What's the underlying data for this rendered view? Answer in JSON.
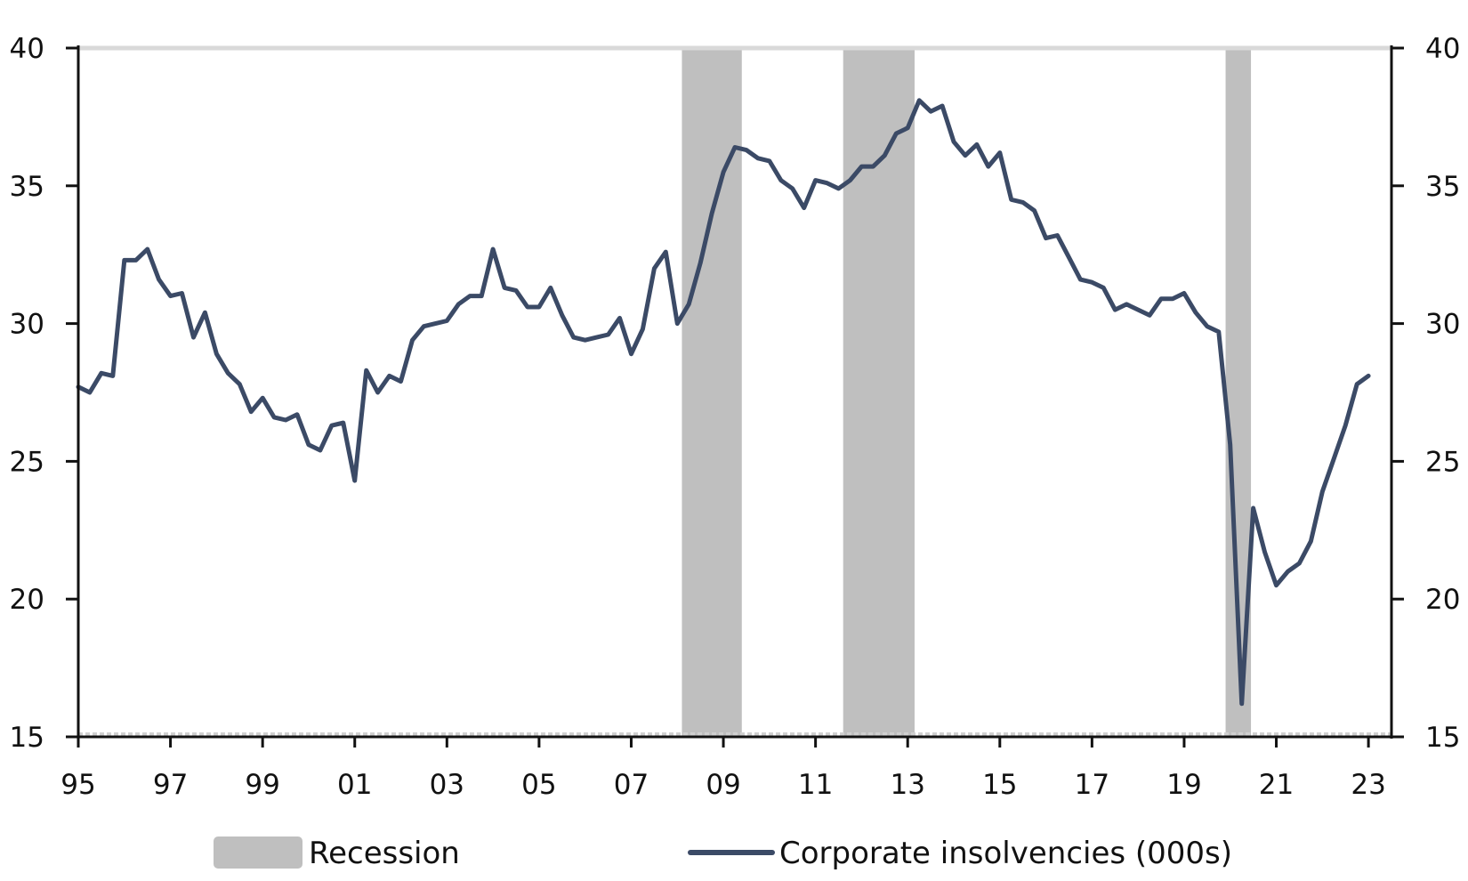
{
  "chart_data": {
    "type": "line",
    "title": "",
    "xlabel": "",
    "ylabel": "",
    "xlim": [
      1995,
      2023.5
    ],
    "ylim": [
      15,
      40
    ],
    "y_ticks": [
      15,
      20,
      25,
      30,
      35,
      40
    ],
    "y_tick_labels": [
      "15",
      "20",
      "25",
      "30",
      "35",
      "40"
    ],
    "x_ticks": [
      1995,
      1997,
      1999,
      2001,
      2003,
      2005,
      2007,
      2009,
      2011,
      2013,
      2015,
      2017,
      2019,
      2021,
      2023
    ],
    "x_tick_labels": [
      "95",
      "97",
      "99",
      "01",
      "03",
      "05",
      "07",
      "09",
      "11",
      "13",
      "15",
      "17",
      "19",
      "21",
      "23"
    ],
    "dual_y_axis": true,
    "legend_position": "bottom",
    "colors": {
      "line": "#3b4a66",
      "recession": "#bfbfbf",
      "top_grid": "#d9d9d9"
    },
    "recessions": [
      {
        "start": 2008.1,
        "end": 2009.4
      },
      {
        "start": 2011.6,
        "end": 2013.15
      },
      {
        "start": 2019.9,
        "end": 2020.45
      }
    ],
    "series": [
      {
        "name": "Corporate insolvencies (000s)",
        "x": [
          1995.0,
          1995.25,
          1995.5,
          1995.75,
          1996.0,
          1996.25,
          1996.5,
          1996.75,
          1997.0,
          1997.25,
          1997.5,
          1997.75,
          1998.0,
          1998.25,
          1998.5,
          1998.75,
          1999.0,
          1999.25,
          1999.5,
          1999.75,
          2000.0,
          2000.25,
          2000.5,
          2000.75,
          2001.0,
          2001.25,
          2001.5,
          2001.75,
          2002.0,
          2002.25,
          2002.5,
          2002.75,
          2003.0,
          2003.25,
          2003.5,
          2003.75,
          2004.0,
          2004.25,
          2004.5,
          2004.75,
          2005.0,
          2005.25,
          2005.5,
          2005.75,
          2006.0,
          2006.25,
          2006.5,
          2006.75,
          2007.0,
          2007.25,
          2007.5,
          2007.75,
          2008.0,
          2008.25,
          2008.5,
          2008.75,
          2009.0,
          2009.25,
          2009.5,
          2009.75,
          2010.0,
          2010.25,
          2010.5,
          2010.75,
          2011.0,
          2011.25,
          2011.5,
          2011.75,
          2012.0,
          2012.25,
          2012.5,
          2012.75,
          2013.0,
          2013.25,
          2013.5,
          2013.75,
          2014.0,
          2014.25,
          2014.5,
          2014.75,
          2015.0,
          2015.25,
          2015.5,
          2015.75,
          2016.0,
          2016.25,
          2016.5,
          2016.75,
          2017.0,
          2017.25,
          2017.5,
          2017.75,
          2018.0,
          2018.25,
          2018.5,
          2018.75,
          2019.0,
          2019.25,
          2019.5,
          2019.75,
          2020.0,
          2020.25,
          2020.5,
          2020.75,
          2021.0,
          2021.25,
          2021.5,
          2021.75,
          2022.0,
          2022.25,
          2022.5,
          2022.75,
          2023.0
        ],
        "values": [
          27.7,
          27.5,
          28.2,
          28.1,
          32.3,
          32.3,
          32.7,
          31.6,
          31.0,
          31.1,
          29.5,
          30.4,
          28.9,
          28.2,
          27.8,
          26.8,
          27.3,
          26.6,
          26.5,
          26.7,
          25.6,
          25.4,
          26.3,
          26.4,
          24.3,
          28.3,
          27.5,
          28.1,
          27.9,
          29.4,
          29.9,
          30.0,
          30.1,
          30.7,
          31.0,
          31.0,
          32.7,
          31.3,
          31.2,
          30.6,
          30.6,
          31.3,
          30.3,
          29.5,
          29.4,
          29.5,
          29.6,
          30.2,
          28.9,
          29.8,
          32.0,
          32.6,
          30.0,
          30.7,
          32.2,
          34.0,
          35.5,
          36.4,
          36.3,
          36.0,
          35.9,
          35.2,
          34.9,
          34.2,
          35.2,
          35.1,
          34.9,
          35.2,
          35.7,
          35.7,
          36.1,
          36.9,
          37.1,
          38.1,
          37.7,
          37.9,
          36.6,
          36.1,
          36.5,
          35.7,
          36.2,
          34.5,
          34.4,
          34.1,
          33.1,
          33.2,
          32.4,
          31.6,
          31.5,
          31.3,
          30.5,
          30.7,
          30.5,
          30.3,
          30.9,
          30.9,
          31.1,
          30.4,
          29.9,
          29.7,
          25.6,
          16.2,
          23.3,
          21.7,
          20.5,
          21.0,
          21.3,
          22.1,
          23.9,
          25.1,
          26.3,
          27.8,
          28.1
        ]
      }
    ],
    "legend": {
      "recession_label": "Recession",
      "series_label": "Corporate insolvencies (000s)"
    }
  }
}
